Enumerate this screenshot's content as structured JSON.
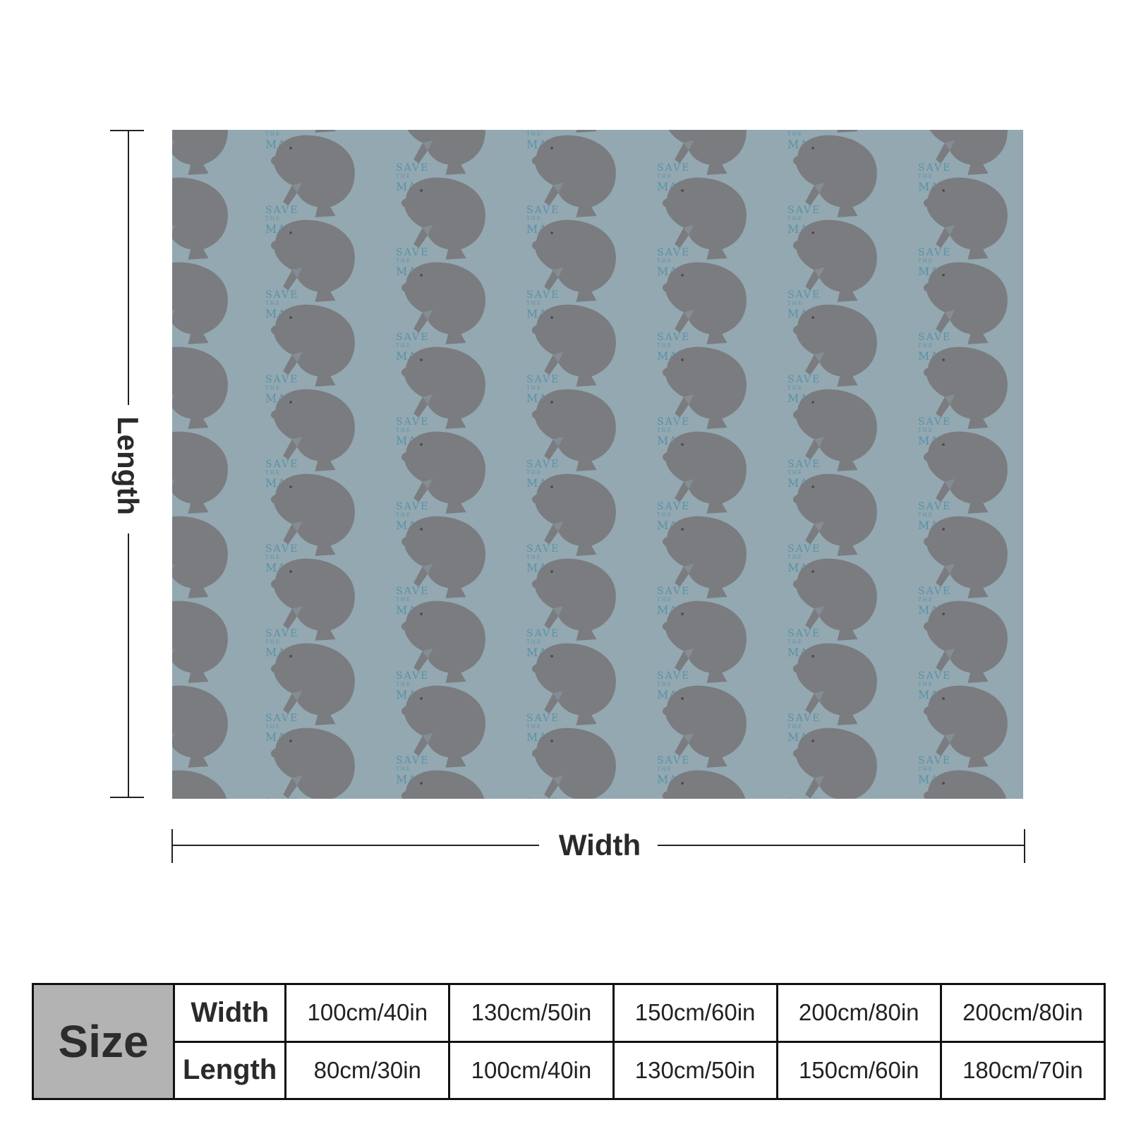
{
  "product": {
    "pattern_text": {
      "line1": "SAVE",
      "line2": "THE",
      "line3": "MANATEE"
    },
    "colors": {
      "background": "#93a8b1",
      "manatee": "#7a7c7f",
      "text": "#4f8fa6"
    }
  },
  "dimensions": {
    "length_label": "Length",
    "width_label": "Width"
  },
  "size_table": {
    "title": "Size",
    "width_label": "Width",
    "length_label": "Length",
    "widths": [
      "100cm/40in",
      "130cm/50in",
      "150cm/60in",
      "200cm/80in",
      "200cm/80in"
    ],
    "lengths": [
      "80cm/30in",
      "100cm/40in",
      "130cm/50in",
      "150cm/60in",
      "180cm/70in"
    ]
  }
}
